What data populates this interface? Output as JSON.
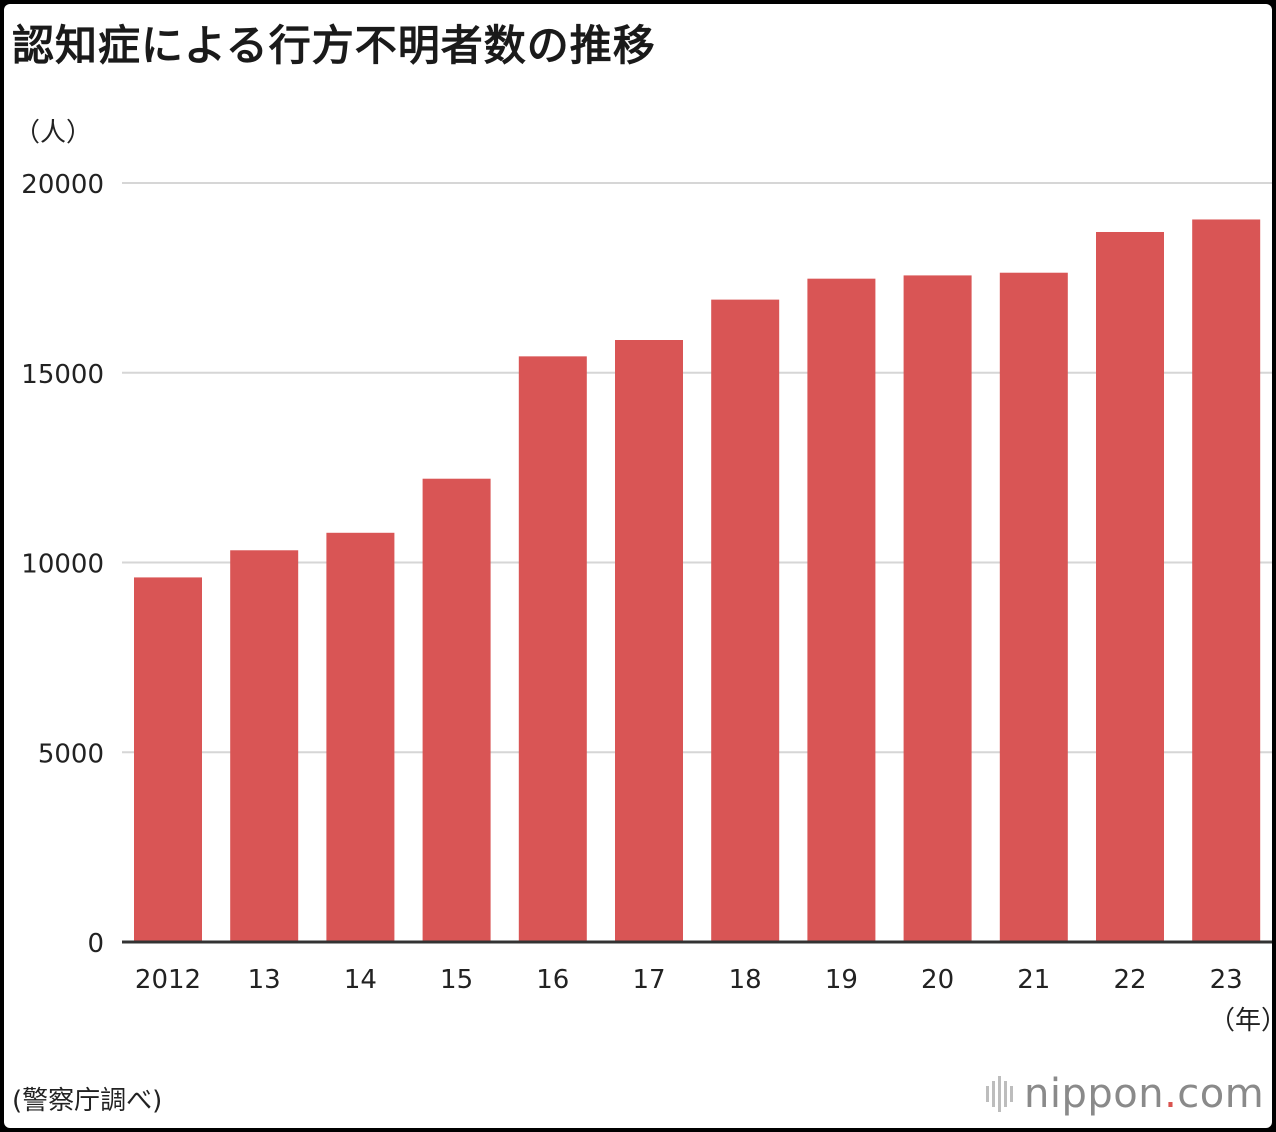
{
  "chart_data": {
    "type": "bar",
    "title": "認知症による行方不明者数の推移",
    "ylabel": "（人）",
    "xlabel": "（年）",
    "categories": [
      "2012",
      "13",
      "14",
      "15",
      "16",
      "17",
      "18",
      "19",
      "20",
      "21",
      "22",
      "23"
    ],
    "values": [
      9607,
      10322,
      10783,
      12208,
      15432,
      15863,
      16927,
      17479,
      17565,
      17636,
      18709,
      19039
    ],
    "ylim": [
      0,
      20000
    ],
    "yticks": [
      "0",
      "5000",
      "10000",
      "15000",
      "20000"
    ],
    "grid": true,
    "bar_color": "#d95555",
    "grid_color": "#d6d6d6",
    "source": "(警察庁調べ)"
  },
  "branding": {
    "logo_main": "nippon",
    "logo_dot": ".",
    "logo_tld": "com",
    "logo_color": "#8a8a8a",
    "logo_dot_color": "#d9534f"
  }
}
